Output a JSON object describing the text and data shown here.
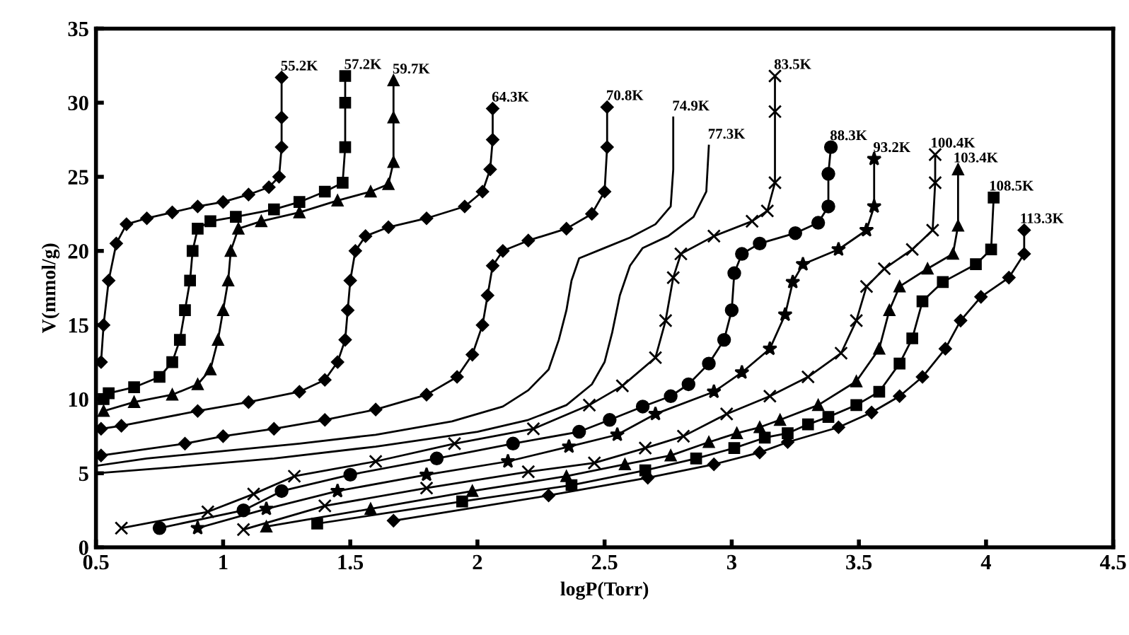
{
  "chart_data": {
    "type": "line",
    "xlabel": "logP(Torr)",
    "ylabel": "V(mmol/g)",
    "xlim": [
      0.5,
      4.5
    ],
    "ylim": [
      0,
      35
    ],
    "xticks": [
      0.5,
      1,
      1.5,
      2,
      2.5,
      3,
      3.5,
      4,
      4.5
    ],
    "yticks": [
      0,
      5,
      10,
      15,
      20,
      25,
      30,
      35
    ],
    "grid": false,
    "legend": false,
    "line_style": "solid",
    "series": [
      {
        "name": "55.2K",
        "color": "#000000",
        "marker": "diamond",
        "x": [
          0.52,
          0.53,
          0.55,
          0.58,
          0.62,
          0.7,
          0.8,
          0.9,
          1.0,
          1.1,
          1.18,
          1.22,
          1.23,
          1.23,
          1.23
        ],
        "values": [
          12.5,
          15,
          18,
          20.5,
          21.8,
          22.2,
          22.6,
          23,
          23.3,
          23.8,
          24.3,
          25,
          27,
          29,
          31.7
        ]
      },
      {
        "name": "57.2K",
        "color": "#000000",
        "marker": "square",
        "x": [
          0.53,
          0.55,
          0.65,
          0.75,
          0.8,
          0.83,
          0.85,
          0.87,
          0.88,
          0.9,
          0.95,
          1.05,
          1.2,
          1.3,
          1.4,
          1.47,
          1.48,
          1.48,
          1.48
        ],
        "values": [
          10,
          10.4,
          10.8,
          11.5,
          12.5,
          14,
          16,
          18,
          20,
          21.5,
          22,
          22.3,
          22.8,
          23.3,
          24,
          24.6,
          27,
          30,
          31.8
        ]
      },
      {
        "name": "59.7K",
        "color": "#000000",
        "marker": "triangle",
        "x": [
          0.53,
          0.65,
          0.8,
          0.9,
          0.95,
          0.98,
          1.0,
          1.02,
          1.03,
          1.06,
          1.15,
          1.3,
          1.45,
          1.58,
          1.65,
          1.67,
          1.67,
          1.67
        ],
        "values": [
          9.2,
          9.8,
          10.3,
          11,
          12,
          14,
          16,
          18,
          20,
          21.5,
          22,
          22.6,
          23.4,
          24,
          24.5,
          26,
          29,
          31.5
        ]
      },
      {
        "name": "64.3K",
        "color": "#000000",
        "marker": "diamond",
        "x": [
          0.52,
          0.6,
          0.9,
          1.1,
          1.3,
          1.4,
          1.45,
          1.48,
          1.49,
          1.5,
          1.52,
          1.56,
          1.65,
          1.8,
          1.95,
          2.02,
          2.05,
          2.06,
          2.06
        ],
        "values": [
          8,
          8.2,
          9.2,
          9.8,
          10.5,
          11.3,
          12.5,
          14,
          16,
          18,
          20,
          21,
          21.6,
          22.2,
          23,
          24,
          25.5,
          27.5,
          29.6
        ]
      },
      {
        "name": "70.8K",
        "color": "#000000",
        "marker": "diamond",
        "x": [
          0.52,
          0.85,
          1.0,
          1.2,
          1.4,
          1.6,
          1.8,
          1.92,
          1.98,
          2.02,
          2.04,
          2.06,
          2.1,
          2.2,
          2.35,
          2.45,
          2.5,
          2.51,
          2.51
        ],
        "values": [
          6.2,
          7,
          7.5,
          8,
          8.6,
          9.3,
          10.3,
          11.5,
          13,
          15,
          17,
          19,
          20,
          20.7,
          21.5,
          22.5,
          24,
          27,
          29.7
        ]
      },
      {
        "name": "74.9K",
        "color": "#000000",
        "marker": "none",
        "x": [
          0.5,
          0.7,
          1.0,
          1.3,
          1.6,
          1.9,
          2.1,
          2.2,
          2.28,
          2.32,
          2.35,
          2.37,
          2.4,
          2.5,
          2.6,
          2.7,
          2.76,
          2.77,
          2.77
        ],
        "values": [
          5.5,
          6,
          6.5,
          7,
          7.6,
          8.5,
          9.5,
          10.6,
          12,
          14,
          16,
          18,
          19.5,
          20.2,
          20.9,
          21.8,
          23,
          25.5,
          29
        ]
      },
      {
        "name": "77.3K",
        "color": "#000000",
        "marker": "none",
        "x": [
          0.5,
          0.8,
          1.2,
          1.6,
          2.0,
          2.2,
          2.35,
          2.45,
          2.5,
          2.53,
          2.56,
          2.6,
          2.65,
          2.75,
          2.85,
          2.9,
          2.91
        ],
        "values": [
          5,
          5.4,
          6,
          6.8,
          7.8,
          8.6,
          9.6,
          11,
          12.5,
          14.5,
          17,
          19,
          20.2,
          21,
          22.3,
          24,
          27.1
        ]
      },
      {
        "name": "83.5K",
        "color": "#000000",
        "marker": "cross",
        "x": [
          0.6,
          0.94,
          1.12,
          1.28,
          1.6,
          1.91,
          2.22,
          2.44,
          2.57,
          2.7,
          2.74,
          2.77,
          2.8,
          2.93,
          3.08,
          3.14,
          3.17,
          3.17,
          3.17
        ],
        "values": [
          1.3,
          2.4,
          3.6,
          4.8,
          5.8,
          7,
          8,
          9.6,
          10.9,
          12.8,
          15.3,
          18.2,
          19.8,
          21,
          22,
          22.7,
          24.6,
          29.4,
          31.8
        ]
      },
      {
        "name": "88.3K",
        "color": "#000000",
        "marker": "circle",
        "x": [
          0.75,
          1.08,
          1.23,
          1.5,
          1.84,
          2.14,
          2.4,
          2.52,
          2.65,
          2.76,
          2.83,
          2.91,
          2.97,
          3.0,
          3.01,
          3.04,
          3.11,
          3.25,
          3.34,
          3.38,
          3.38,
          3.39
        ],
        "values": [
          1.3,
          2.5,
          3.8,
          4.9,
          6,
          7,
          7.8,
          8.6,
          9.5,
          10.2,
          11,
          12.4,
          14,
          16,
          18.5,
          19.8,
          20.5,
          21.2,
          21.9,
          23,
          25.2,
          27
        ]
      },
      {
        "name": "93.2K",
        "color": "#000000",
        "marker": "star",
        "x": [
          0.9,
          1.17,
          1.45,
          1.8,
          2.12,
          2.36,
          2.55,
          2.7,
          2.93,
          3.04,
          3.15,
          3.21,
          3.24,
          3.28,
          3.42,
          3.53,
          3.56,
          3.56
        ],
        "values": [
          1.3,
          2.6,
          3.8,
          4.9,
          5.8,
          6.8,
          7.6,
          9,
          10.5,
          11.8,
          13.4,
          15.7,
          17.9,
          19.1,
          20.1,
          21.4,
          23,
          26.2
        ]
      },
      {
        "name": "100.4K",
        "color": "#000000",
        "marker": "cross",
        "x": [
          1.08,
          1.4,
          1.8,
          2.2,
          2.46,
          2.66,
          2.81,
          2.98,
          3.15,
          3.3,
          3.43,
          3.49,
          3.53,
          3.6,
          3.71,
          3.79,
          3.8,
          3.8
        ],
        "values": [
          1.2,
          2.8,
          4,
          5.1,
          5.7,
          6.7,
          7.5,
          9,
          10.2,
          11.5,
          13.1,
          15.3,
          17.6,
          18.8,
          20.1,
          21.4,
          24.6,
          26.5
        ]
      },
      {
        "name": "103.4K",
        "color": "#000000",
        "marker": "triangle",
        "x": [
          1.17,
          1.58,
          1.98,
          2.35,
          2.58,
          2.76,
          2.91,
          3.02,
          3.11,
          3.19,
          3.34,
          3.49,
          3.58,
          3.62,
          3.66,
          3.77,
          3.87,
          3.89,
          3.89
        ],
        "values": [
          1.4,
          2.6,
          3.8,
          4.8,
          5.6,
          6.2,
          7.1,
          7.7,
          8.1,
          8.6,
          9.6,
          11.2,
          13.4,
          16,
          17.6,
          18.8,
          19.8,
          21.7,
          25.5
        ]
      },
      {
        "name": "108.5K",
        "color": "#000000",
        "marker": "square",
        "x": [
          1.37,
          1.94,
          2.37,
          2.66,
          2.86,
          3.01,
          3.13,
          3.22,
          3.3,
          3.38,
          3.49,
          3.58,
          3.66,
          3.71,
          3.75,
          3.83,
          3.96,
          4.02,
          4.03
        ],
        "values": [
          1.6,
          3.1,
          4.2,
          5.2,
          6,
          6.7,
          7.4,
          7.7,
          8.3,
          8.8,
          9.6,
          10.5,
          12.4,
          14.1,
          16.6,
          17.9,
          19.1,
          20.1,
          23.6
        ]
      },
      {
        "name": "113.3K",
        "color": "#000000",
        "marker": "diamond",
        "x": [
          1.67,
          2.28,
          2.67,
          2.93,
          3.11,
          3.22,
          3.42,
          3.55,
          3.66,
          3.75,
          3.84,
          3.9,
          3.98,
          4.09,
          4.15,
          4.15
        ],
        "values": [
          1.8,
          3.5,
          4.7,
          5.6,
          6.4,
          7.1,
          8.1,
          9.1,
          10.2,
          11.5,
          13.4,
          15.3,
          16.9,
          18.2,
          19.8,
          21.4
        ]
      }
    ]
  }
}
